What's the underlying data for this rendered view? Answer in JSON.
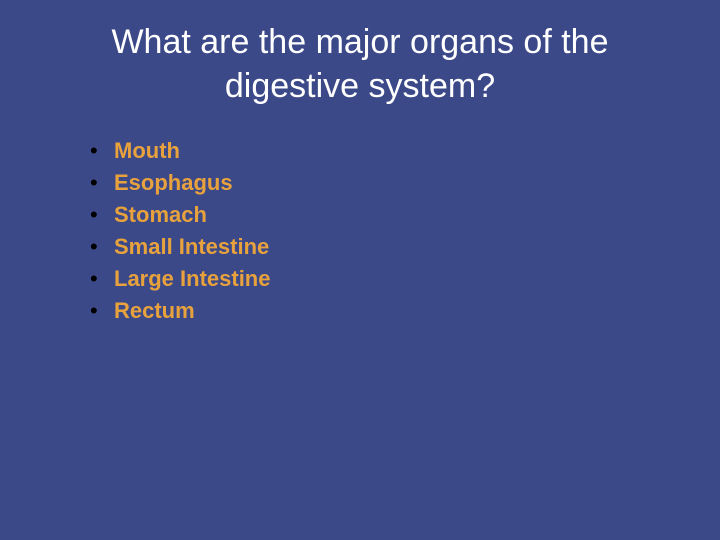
{
  "slide": {
    "background_color": "#3b4988",
    "title": {
      "text": "What are the major organs of the digestive system?",
      "color": "#ffffff",
      "font_size": 34
    },
    "list": {
      "bullet_char": "•",
      "bullet_color": "#000000",
      "item_color": "#e8a23d",
      "item_font_size": 22,
      "item_font_weight": "bold",
      "items": [
        "Mouth",
        "Esophagus",
        "Stomach",
        "Small  Intestine",
        "Large Intestine",
        "Rectum"
      ]
    }
  }
}
